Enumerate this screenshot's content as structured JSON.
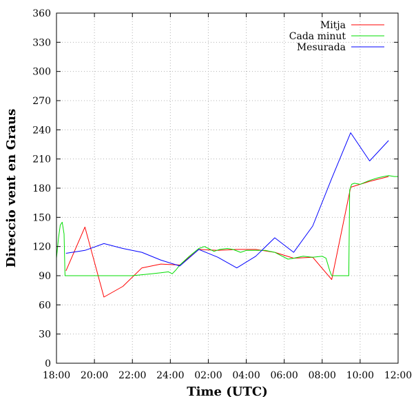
{
  "chart_data": {
    "type": "line",
    "xlabel": "Time (UTC)",
    "ylabel": "Direccio vent en Graus",
    "x_ticks": [
      "18:00",
      "20:00",
      "22:00",
      "24:00",
      "02:00",
      "04:00",
      "06:00",
      "08:00",
      "10:00",
      "12:00"
    ],
    "x_range_hours": [
      18,
      36
    ],
    "ylim": [
      0,
      360
    ],
    "y_ticks": [
      0,
      30,
      60,
      90,
      120,
      150,
      180,
      210,
      240,
      270,
      300,
      330,
      360
    ],
    "grid": true,
    "legend_position": "top-right",
    "series": [
      {
        "name": "Mitja",
        "color": "#ff0000",
        "points": [
          [
            18.5,
            95
          ],
          [
            19.5,
            140
          ],
          [
            20.5,
            68
          ],
          [
            21.5,
            79
          ],
          [
            22.5,
            98
          ],
          [
            23.5,
            102
          ],
          [
            24.5,
            101
          ],
          [
            25.5,
            117
          ],
          [
            26.5,
            116
          ],
          [
            27.5,
            117
          ],
          [
            28.5,
            117
          ],
          [
            29.5,
            114
          ],
          [
            30.5,
            108
          ],
          [
            31.5,
            109
          ],
          [
            32.5,
            86
          ],
          [
            33.5,
            181
          ],
          [
            34.5,
            187
          ],
          [
            35.5,
            192
          ]
        ]
      },
      {
        "name": "Cada minut",
        "color": "#00dd00",
        "points": [
          [
            18.0,
            108
          ],
          [
            18.1,
            128
          ],
          [
            18.2,
            142
          ],
          [
            18.3,
            145
          ],
          [
            18.4,
            133
          ],
          [
            18.45,
            90
          ],
          [
            19.0,
            90
          ],
          [
            20.0,
            90
          ],
          [
            21.0,
            90
          ],
          [
            22.0,
            90
          ],
          [
            22.5,
            91
          ],
          [
            23.0,
            92
          ],
          [
            23.5,
            93
          ],
          [
            23.9,
            94
          ],
          [
            24.1,
            92
          ],
          [
            24.3,
            96
          ],
          [
            24.5,
            101
          ],
          [
            25.0,
            110
          ],
          [
            25.5,
            118
          ],
          [
            25.8,
            120
          ],
          [
            26.0,
            118
          ],
          [
            26.3,
            115
          ],
          [
            26.6,
            117
          ],
          [
            27.0,
            118
          ],
          [
            27.3,
            117
          ],
          [
            27.7,
            114
          ],
          [
            28.0,
            116
          ],
          [
            28.5,
            116
          ],
          [
            29.0,
            116
          ],
          [
            29.5,
            114
          ],
          [
            29.8,
            111
          ],
          [
            30.2,
            107
          ],
          [
            30.5,
            108
          ],
          [
            31.0,
            110
          ],
          [
            31.5,
            109
          ],
          [
            32.0,
            110
          ],
          [
            32.2,
            108
          ],
          [
            32.4,
            95
          ],
          [
            32.5,
            90
          ],
          [
            33.3,
            90
          ],
          [
            33.4,
            90
          ],
          [
            33.45,
            178
          ],
          [
            33.55,
            184
          ],
          [
            33.7,
            185
          ],
          [
            34.0,
            184
          ],
          [
            34.5,
            188
          ],
          [
            35.0,
            191
          ],
          [
            35.5,
            193
          ],
          [
            35.8,
            192
          ],
          [
            36.0,
            192
          ]
        ]
      },
      {
        "name": "Mesurada",
        "color": "#0000ff",
        "points": [
          [
            18.5,
            113
          ],
          [
            19.5,
            116
          ],
          [
            20.5,
            123
          ],
          [
            21.5,
            118
          ],
          [
            22.5,
            114
          ],
          [
            23.5,
            106
          ],
          [
            24.5,
            100
          ],
          [
            25.5,
            117
          ],
          [
            26.5,
            109
          ],
          [
            27.5,
            98
          ],
          [
            28.5,
            110
          ],
          [
            29.5,
            129
          ],
          [
            30.5,
            114
          ],
          [
            31.5,
            141
          ],
          [
            32.5,
            190
          ],
          [
            33.5,
            237
          ],
          [
            34.5,
            208
          ],
          [
            35.5,
            229
          ]
        ]
      }
    ]
  }
}
